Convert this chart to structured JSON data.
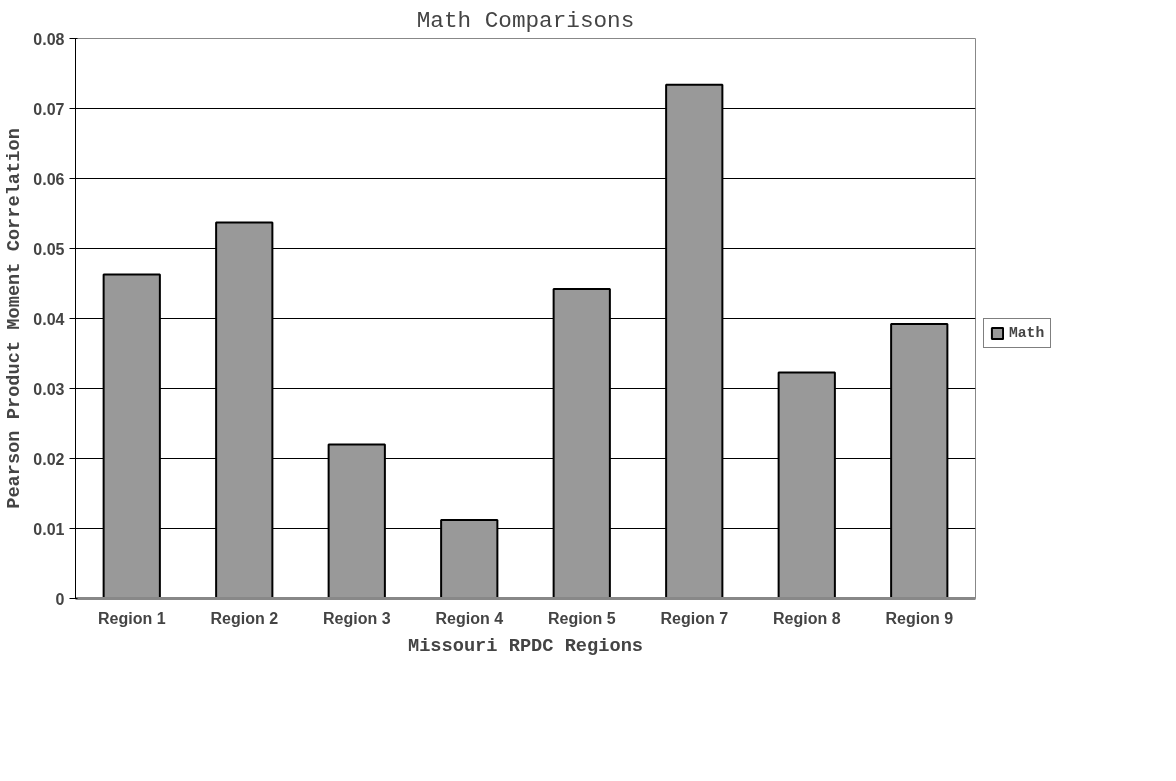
{
  "chart_data": {
    "type": "bar",
    "title": "Math Comparisons",
    "xlabel": "Missouri RPDC Regions",
    "ylabel": "Pearson Product Moment Correlation",
    "categories": [
      "Region 1",
      "Region 2",
      "Region 3",
      "Region 4",
      "Region 5",
      "Region 7",
      "Region 8",
      "Region 9"
    ],
    "series": [
      {
        "name": "Math",
        "color": "#999999",
        "values": [
          0.0463,
          0.0537,
          0.022,
          0.0112,
          0.0442,
          0.0734,
          0.0323,
          0.0392
        ]
      }
    ],
    "ylim": [
      0,
      0.08
    ],
    "yticks": [
      0,
      {
        "value": 0.01,
        "label": "0.01"
      },
      {
        "value": 0.02,
        "label": "0.02"
      },
      {
        "value": 0.03,
        "label": "0.03"
      },
      {
        "value": 0.04,
        "label": "0.04"
      },
      {
        "value": 0.05,
        "label": "0.05"
      },
      {
        "value": 0.06,
        "label": "0.06"
      },
      {
        "value": 0.07,
        "label": "0.07"
      },
      {
        "value": 0.08,
        "label": "0.08"
      }
    ],
    "grid": "y",
    "legend": "right"
  }
}
